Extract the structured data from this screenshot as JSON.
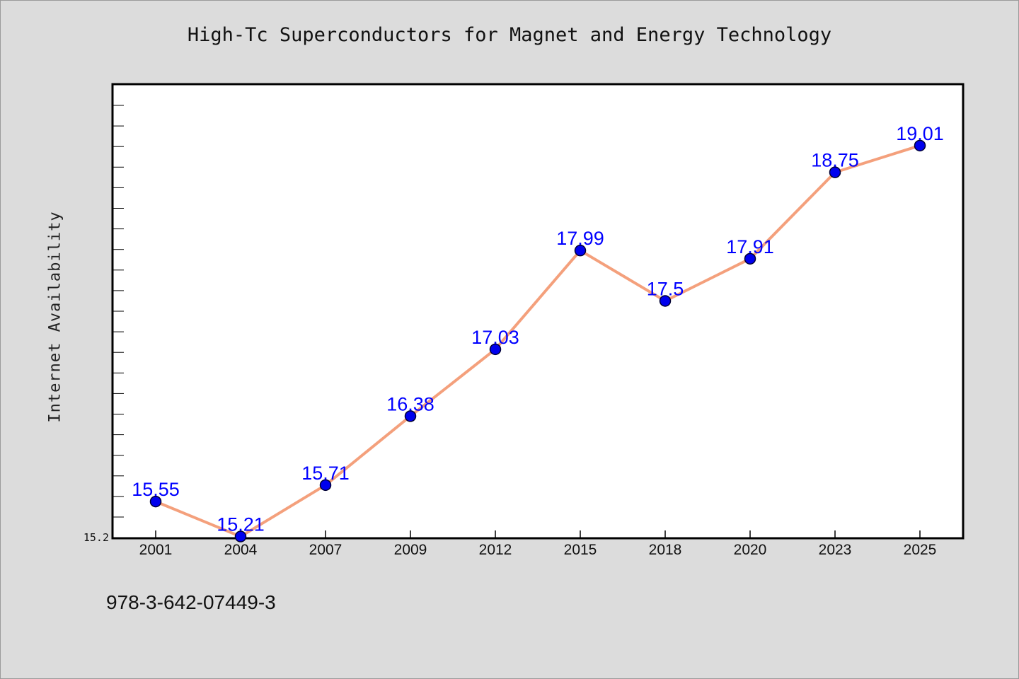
{
  "chart_data": {
    "type": "line",
    "title": "High-Tc Superconductors for Magnet and Energy Technology",
    "xlabel": "",
    "ylabel": "Internet Availability",
    "categories": [
      "2001",
      "2004",
      "2007",
      "2009",
      "2012",
      "2015",
      "2018",
      "2020",
      "2023",
      "2025"
    ],
    "series": [
      {
        "values": [
          15.55,
          15.21,
          15.71,
          16.38,
          17.03,
          17.99,
          17.5,
          17.91,
          18.75,
          19.01
        ],
        "data_labels": [
          "15.55",
          "15.21",
          "15.71",
          "16.38",
          "17.03",
          "17.99",
          "17.5",
          "17.91",
          "18.75",
          "19.01"
        ]
      }
    ],
    "ylim": [
      15.2,
      19.6
    ],
    "y_tick_labels": [
      "15.2"
    ],
    "grid": false,
    "legend": "none",
    "colors": {
      "line": "#f4a07c",
      "marker_fill": "#0000ee",
      "marker_edge": "#000033",
      "data_label": "#0000ff",
      "plot_background": "#ffffff",
      "page_background": "#dcdcdc"
    }
  },
  "footer": {
    "isbn": "978-3-642-07449-3"
  }
}
